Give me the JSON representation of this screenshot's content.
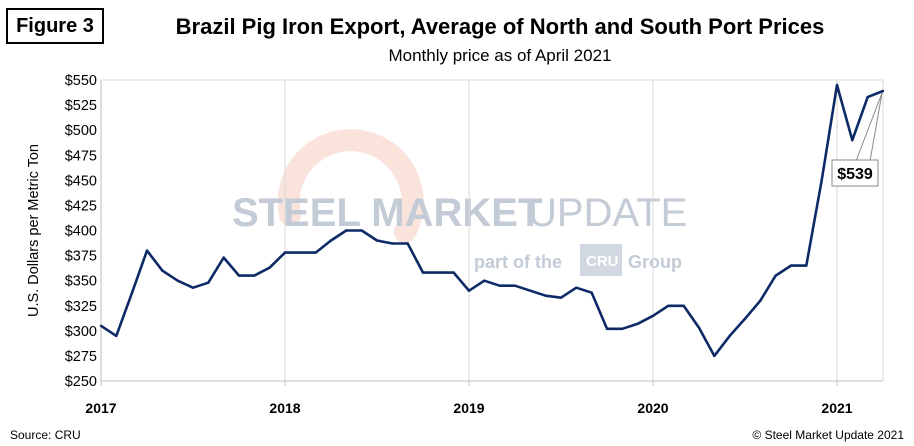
{
  "figure_label": "Figure 3",
  "source_note": "Source: CRU",
  "copyright": "© Steel Market Update 2021",
  "watermark": {
    "brand_bold": "STEEL MARKET",
    "brand_light": "UPDATE",
    "tagline_prefix": "part of the",
    "tagline_logo": "CRU",
    "tagline_suffix": "Group"
  },
  "callout_label": "$539",
  "chart_data": {
    "type": "line",
    "title": "Brazil Pig Iron Export, Average of North and South Port Prices",
    "subtitle": "Monthly price as of April 2021",
    "xlabel": "",
    "ylabel": "U.S. Dollars per Metric Ton",
    "ylim": [
      250,
      550
    ],
    "yticks": [
      250,
      275,
      300,
      325,
      350,
      375,
      400,
      425,
      450,
      475,
      500,
      525,
      550
    ],
    "ytick_prefix": "$",
    "xtick_labels": [
      "2017",
      "2018",
      "2019",
      "2020",
      "2021"
    ],
    "grid": "vertical",
    "line_color": "#0d2a66",
    "series": [
      {
        "name": "Brazil Pig Iron Export Price",
        "x": [
          "2017-01",
          "2017-02",
          "2017-03",
          "2017-04",
          "2017-05",
          "2017-06",
          "2017-07",
          "2017-08",
          "2017-09",
          "2017-10",
          "2017-11",
          "2017-12",
          "2018-01",
          "2018-02",
          "2018-03",
          "2018-04",
          "2018-05",
          "2018-06",
          "2018-07",
          "2018-08",
          "2018-09",
          "2018-10",
          "2018-11",
          "2018-12",
          "2019-01",
          "2019-02",
          "2019-03",
          "2019-04",
          "2019-05",
          "2019-06",
          "2019-07",
          "2019-08",
          "2019-09",
          "2019-10",
          "2019-11",
          "2019-12",
          "2020-01",
          "2020-02",
          "2020-03",
          "2020-04",
          "2020-05",
          "2020-06",
          "2020-07",
          "2020-08",
          "2020-09",
          "2020-10",
          "2020-11",
          "2020-12",
          "2021-01",
          "2021-02",
          "2021-03",
          "2021-04"
        ],
        "values": [
          305,
          295,
          337,
          380,
          360,
          350,
          343,
          348,
          373,
          355,
          355,
          363,
          378,
          378,
          378,
          390,
          400,
          400,
          390,
          387,
          387,
          358,
          358,
          358,
          340,
          350,
          345,
          345,
          340,
          335,
          333,
          343,
          338,
          302,
          302,
          307,
          315,
          325,
          325,
          303,
          275,
          295,
          312,
          330,
          355,
          365,
          365,
          450,
          545,
          490,
          533,
          539
        ]
      }
    ],
    "annotations": [
      {
        "text": "$539",
        "x": "2021-04",
        "y": 539
      }
    ]
  }
}
